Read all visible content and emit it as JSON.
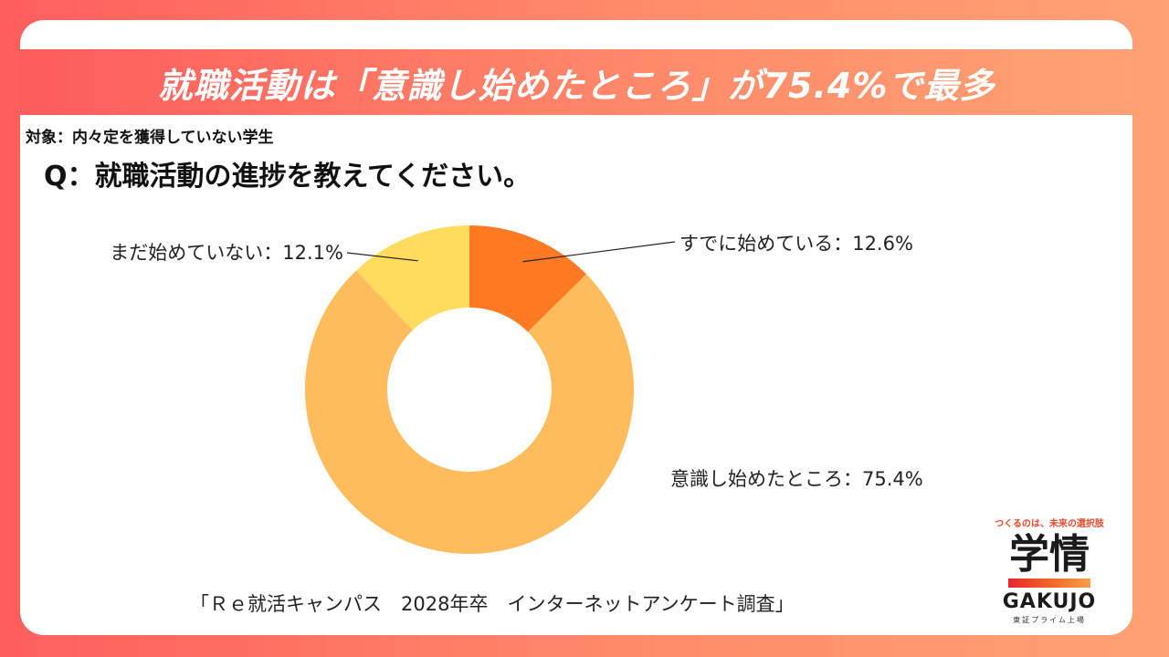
{
  "headline": "就職活動は「意識し始めたところ」が75.4%で最多",
  "target_note": "対象：内々定を獲得していない学生",
  "question": "Q：就職活動の進捗を教えてください。",
  "source": "「Ｒｅ就活キャンパス　2028年卒　インターネットアンケート調査」",
  "logo": {
    "tagline": "つくるのは、未来の選択肢",
    "mark": "学情",
    "brand": "GAKUJO",
    "listed": "東証プライム上場"
  },
  "colors": {
    "background_start": "#fe5e5e",
    "background_end": "#ffa174",
    "headline_text": "#ffffff"
  },
  "chart_data": {
    "type": "pie",
    "donut": true,
    "legend": "none",
    "slices": [
      {
        "label": "すでに始めている：12.6%",
        "value": 12.6,
        "color": "#ff7a22"
      },
      {
        "label": "意識し始めたところ：75.4%",
        "value": 75.4,
        "color": "#ffbc5c"
      },
      {
        "label": "まだ始めていない：12.1%",
        "value": 12.1,
        "color": "#ffdb5e"
      }
    ]
  }
}
